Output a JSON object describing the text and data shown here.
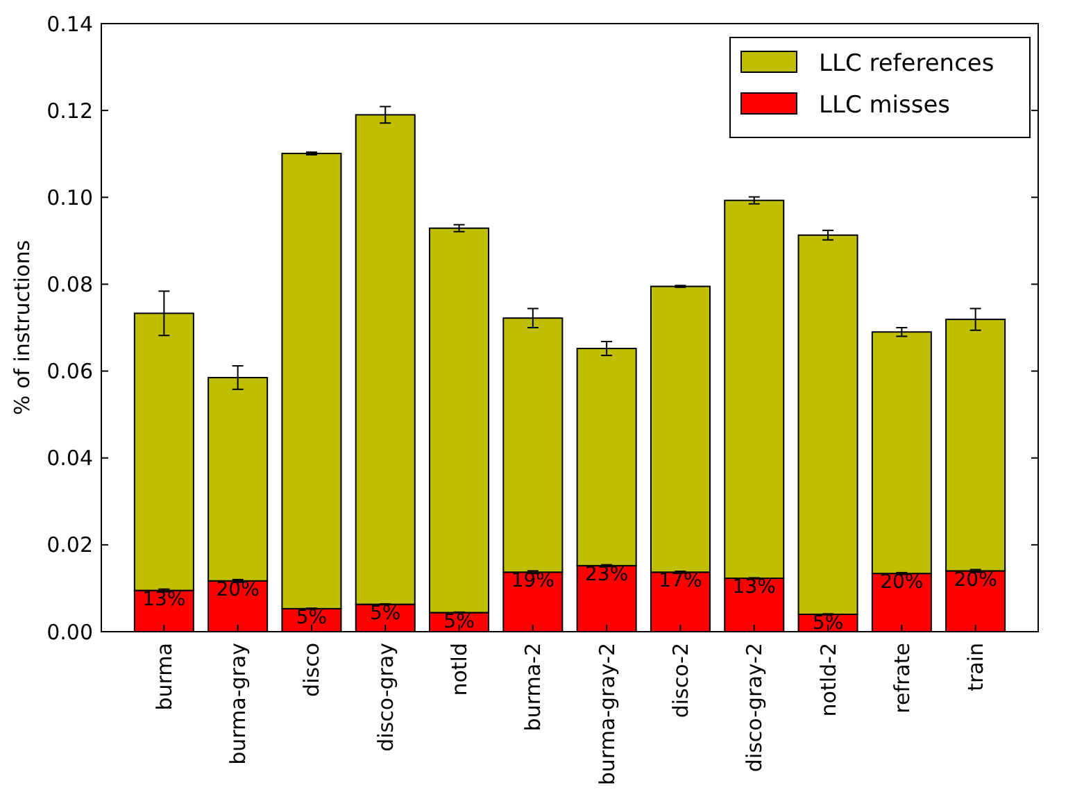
{
  "chart_data": {
    "type": "bar",
    "stacked": true,
    "ylabel": "% of instructions",
    "categories": [
      "burma",
      "burma-gray",
      "disco",
      "disco-gray",
      "notld",
      "burma-2",
      "burma-gray-2",
      "disco-2",
      "disco-gray-2",
      "notld-2",
      "refrate",
      "train"
    ],
    "series": [
      {
        "name": "LLC misses",
        "color": "#ff0000",
        "values": [
          0.0095,
          0.0117,
          0.0053,
          0.0063,
          0.0044,
          0.0137,
          0.0152,
          0.0137,
          0.0123,
          0.004,
          0.0134,
          0.014
        ],
        "errors": [
          0.0003,
          0.0003,
          0.0001,
          0.0001,
          0.0001,
          0.0003,
          0.0002,
          0.0002,
          0.0001,
          0.0001,
          0.0002,
          0.0003
        ]
      },
      {
        "name": "LLC references",
        "color": "#bfbf00",
        "values": [
          0.0638,
          0.0468,
          0.1048,
          0.1127,
          0.0885,
          0.0585,
          0.05,
          0.0658,
          0.087,
          0.0873,
          0.0556,
          0.0579
        ],
        "errors": [
          0.0051,
          0.0027,
          0.0003,
          0.0019,
          0.0008,
          0.0022,
          0.0016,
          0.0002,
          0.0008,
          0.0011,
          0.001,
          0.0025
        ]
      }
    ],
    "ylim": [
      0,
      0.14
    ],
    "yticks": [
      {
        "value": 0,
        "label": "0.00"
      },
      {
        "value": 0.02,
        "label": "0.02"
      },
      {
        "value": 0.04,
        "label": "0.04"
      },
      {
        "value": 0.06,
        "label": "0.06"
      },
      {
        "value": 0.08,
        "label": "0.08"
      },
      {
        "value": 0.1,
        "label": "0.10"
      },
      {
        "value": 0.12,
        "label": "0.12"
      },
      {
        "value": 0.14,
        "label": "0.14"
      }
    ],
    "grid": false,
    "legend": "top right",
    "annotations": [
      {
        "text": "13%",
        "x": "burma",
        "y": 0.0095
      },
      {
        "text": "20%",
        "x": "burma-gray",
        "y": 0.0117
      },
      {
        "text": "5%",
        "x": "disco",
        "y": 0.0053
      },
      {
        "text": "5%",
        "x": "disco-gray",
        "y": 0.0063
      },
      {
        "text": "5%",
        "x": "notld",
        "y": 0.0044
      },
      {
        "text": "19%",
        "x": "burma-2",
        "y": 0.0137
      },
      {
        "text": "23%",
        "x": "burma-gray-2",
        "y": 0.0152
      },
      {
        "text": "17%",
        "x": "disco-2",
        "y": 0.0137
      },
      {
        "text": "13%",
        "x": "disco-gray-2",
        "y": 0.0123
      },
      {
        "text": "5%",
        "x": "notld-2",
        "y": 0.004
      },
      {
        "text": "20%",
        "x": "refrate",
        "y": 0.0134
      },
      {
        "text": "20%",
        "x": "train",
        "y": 0.014
      }
    ]
  }
}
